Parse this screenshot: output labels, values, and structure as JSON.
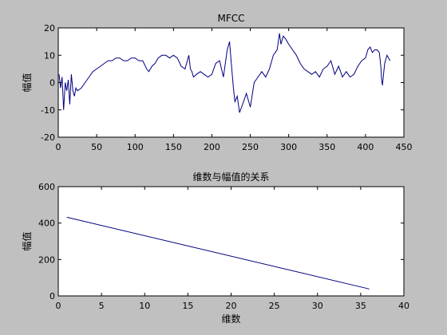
{
  "chart_data": [
    {
      "type": "line",
      "title": "MFCC",
      "xlabel": "",
      "ylabel": "幅值",
      "xlim": [
        0,
        450
      ],
      "ylim": [
        -20,
        20
      ],
      "xticks": [
        0,
        50,
        100,
        150,
        200,
        250,
        300,
        350,
        400,
        450
      ],
      "yticks": [
        -20,
        -10,
        0,
        10,
        20
      ],
      "grid": false,
      "line_color": "#00007f",
      "series": [
        {
          "x": [
            1,
            3,
            5,
            7,
            9,
            11,
            13,
            15,
            17,
            19,
            21,
            23,
            25,
            30,
            35,
            40,
            45,
            50,
            55,
            60,
            65,
            70,
            75,
            80,
            85,
            90,
            95,
            100,
            105,
            110,
            115,
            118,
            122,
            126,
            130,
            135,
            140,
            145,
            150,
            155,
            160,
            165,
            170,
            172,
            174,
            176,
            180,
            185,
            190,
            195,
            200,
            205,
            210,
            215,
            220,
            223,
            225,
            228,
            230,
            233,
            236,
            240,
            245,
            250,
            255,
            260,
            265,
            270,
            275,
            280,
            285,
            288,
            290,
            293,
            296,
            300,
            305,
            310,
            315,
            320,
            325,
            330,
            335,
            340,
            345,
            350,
            355,
            360,
            365,
            370,
            375,
            380,
            385,
            390,
            395,
            400,
            403,
            406,
            409,
            412,
            415,
            418,
            420,
            421,
            422,
            425,
            428,
            432
          ],
          "y": [
            3,
            -2,
            2,
            -10,
            0,
            -3,
            1,
            -8,
            3,
            -3,
            -5,
            -2,
            -3,
            -2,
            0,
            2,
            4,
            5,
            6,
            7,
            8,
            8,
            9,
            9,
            8,
            8,
            9,
            9,
            8,
            8,
            5,
            4,
            6,
            7,
            9,
            10,
            10,
            9,
            10,
            9,
            6,
            5,
            10,
            5,
            4,
            2,
            3,
            4,
            3,
            2,
            3,
            7,
            8,
            2,
            12,
            15,
            8,
            -2,
            -7,
            -5,
            -11,
            -8,
            -4,
            -9,
            0,
            2,
            4,
            2,
            5,
            10,
            12,
            18,
            14,
            17,
            16,
            14,
            12,
            10,
            7,
            5,
            4,
            3,
            4,
            2,
            5,
            6,
            8,
            3,
            6,
            2,
            4,
            2,
            3,
            6,
            8,
            9,
            12,
            13,
            11,
            12,
            12,
            11,
            6,
            1,
            -1,
            7,
            10,
            8
          ]
        }
      ]
    },
    {
      "type": "line",
      "title": "维数与幅值的关系",
      "xlabel": "维数",
      "ylabel": "幅值",
      "xlim": [
        0,
        40
      ],
      "ylim": [
        0,
        600
      ],
      "xticks": [
        0,
        5,
        10,
        15,
        20,
        25,
        30,
        35,
        40
      ],
      "yticks": [
        0,
        200,
        400,
        600
      ],
      "grid": false,
      "line_color": "#00007f",
      "series": [
        {
          "x": [
            1,
            36
          ],
          "y": [
            432,
            38
          ]
        }
      ]
    }
  ]
}
